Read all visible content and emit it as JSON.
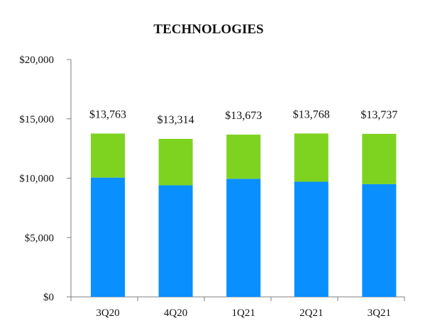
{
  "chart_data": {
    "type": "bar",
    "stacked": true,
    "title": "TECHNOLOGIES",
    "xlabel": "",
    "ylabel": "",
    "categories": [
      "3Q20",
      "4Q20",
      "1Q21",
      "2Q21",
      "3Q21"
    ],
    "series": [
      {
        "color": "#0a8fff",
        "values": [
          10050,
          9400,
          9950,
          9700,
          9500
        ]
      },
      {
        "color": "#7ed321",
        "values": [
          3713,
          3914,
          3723,
          4068,
          4237
        ]
      }
    ],
    "totals": [
      13763,
      13314,
      13673,
      13768,
      13737
    ],
    "total_labels": [
      "$13,763",
      "$13,314",
      "$13,673",
      "$13,768",
      "$13,737"
    ],
    "ylim": [
      0,
      20000
    ],
    "yticks": [
      0,
      5000,
      10000,
      15000,
      20000
    ],
    "ytick_labels": [
      "$0",
      "$5,000",
      "$10,000",
      "$15,000",
      "$20,000"
    ],
    "grid": false,
    "legend": "none"
  }
}
